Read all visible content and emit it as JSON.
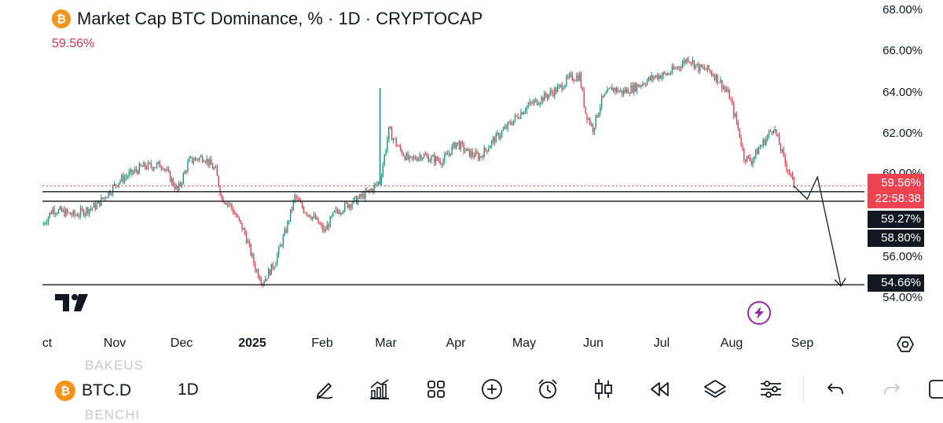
{
  "header": {
    "title": "Market Cap BTC Dominance, % · 1D · CRYPTOCAP",
    "logo_glyph": "₿",
    "last_price": "59.56%"
  },
  "price_labels": {
    "current": "59.56%",
    "countdown": "22:58:38",
    "level_1": "59.27%",
    "level_2": "58.80%",
    "level_3": "54.66%"
  },
  "colors": {
    "up": "#089981",
    "down": "#f23645",
    "price_tag": "#ef4351",
    "level_tag": "#131722",
    "logo": "#f7931a",
    "accent": "#9c27b0"
  },
  "chart_data": {
    "type": "candlestick",
    "title": "Market Cap BTC Dominance, % · 1D · CRYPTOCAP",
    "ylim": [
      53.5,
      68.3
    ],
    "y_ticks": [
      "68.00%",
      "66.00%",
      "64.00%",
      "62.00%",
      "60.00%",
      "56.00%",
      "54.00%"
    ],
    "x_ticks": [
      "ct",
      "Nov",
      "Dec",
      "2025",
      "Feb",
      "Mar",
      "Apr",
      "May",
      "Jun",
      "Jul",
      "Aug",
      "Sep"
    ],
    "price_path": [
      [
        0,
        57.6
      ],
      [
        7,
        58.4
      ],
      [
        22,
        58.1
      ],
      [
        37,
        58.6
      ],
      [
        52,
        59.8
      ],
      [
        68,
        60.5
      ],
      [
        82,
        60.6
      ],
      [
        92,
        59.3
      ],
      [
        100,
        60.8
      ],
      [
        110,
        61.0
      ],
      [
        118,
        60.3
      ],
      [
        122,
        59.0
      ],
      [
        128,
        58.6
      ],
      [
        138,
        57.2
      ],
      [
        145,
        55.5
      ],
      [
        150,
        54.8
      ],
      [
        158,
        55.7
      ],
      [
        166,
        57.4
      ],
      [
        172,
        59.0
      ],
      [
        178,
        58.4
      ],
      [
        186,
        57.9
      ],
      [
        192,
        57.3
      ],
      [
        199,
        58.2
      ],
      [
        207,
        58.6
      ],
      [
        215,
        58.9
      ],
      [
        223,
        59.3
      ],
      [
        230,
        59.8
      ],
      [
        236,
        62.3
      ],
      [
        243,
        61.4
      ],
      [
        250,
        60.8
      ],
      [
        258,
        61.1
      ],
      [
        265,
        60.9
      ],
      [
        273,
        60.8
      ],
      [
        282,
        61.7
      ],
      [
        290,
        61.2
      ],
      [
        298,
        61.0
      ],
      [
        307,
        61.8
      ],
      [
        314,
        62.3
      ],
      [
        322,
        62.9
      ],
      [
        330,
        63.5
      ],
      [
        338,
        63.8
      ],
      [
        345,
        64.1
      ],
      [
        352,
        64.4
      ],
      [
        359,
        64.9
      ],
      [
        366,
        65.0
      ],
      [
        370,
        63.2
      ],
      [
        375,
        62.4
      ],
      [
        381,
        63.8
      ],
      [
        388,
        64.4
      ],
      [
        395,
        64.2
      ],
      [
        402,
        64.4
      ],
      [
        410,
        64.7
      ],
      [
        418,
        65.0
      ],
      [
        426,
        65.1
      ],
      [
        434,
        65.5
      ],
      [
        440,
        65.9
      ],
      [
        447,
        65.4
      ],
      [
        454,
        65.3
      ],
      [
        461,
        64.8
      ],
      [
        468,
        64.0
      ],
      [
        474,
        62.4
      ],
      [
        478,
        61.0
      ],
      [
        483,
        60.8
      ],
      [
        488,
        61.4
      ],
      [
        493,
        61.9
      ],
      [
        498,
        62.5
      ],
      [
        503,
        61.4
      ],
      [
        506,
        60.7
      ],
      [
        509,
        60.2
      ],
      [
        512,
        59.6
      ]
    ],
    "support_lines": [
      59.27,
      58.8,
      54.66
    ],
    "dotted_line": 59.56,
    "forecast_arrow": [
      [
        512,
        59.56
      ],
      [
        521,
        58.9
      ],
      [
        528,
        60.0
      ],
      [
        544,
        54.6
      ]
    ]
  },
  "toolbar": {
    "symbol": "BTC.D",
    "interval": "1D",
    "faint_top": "BAKEUS",
    "faint_bottom": "BENCHI"
  }
}
